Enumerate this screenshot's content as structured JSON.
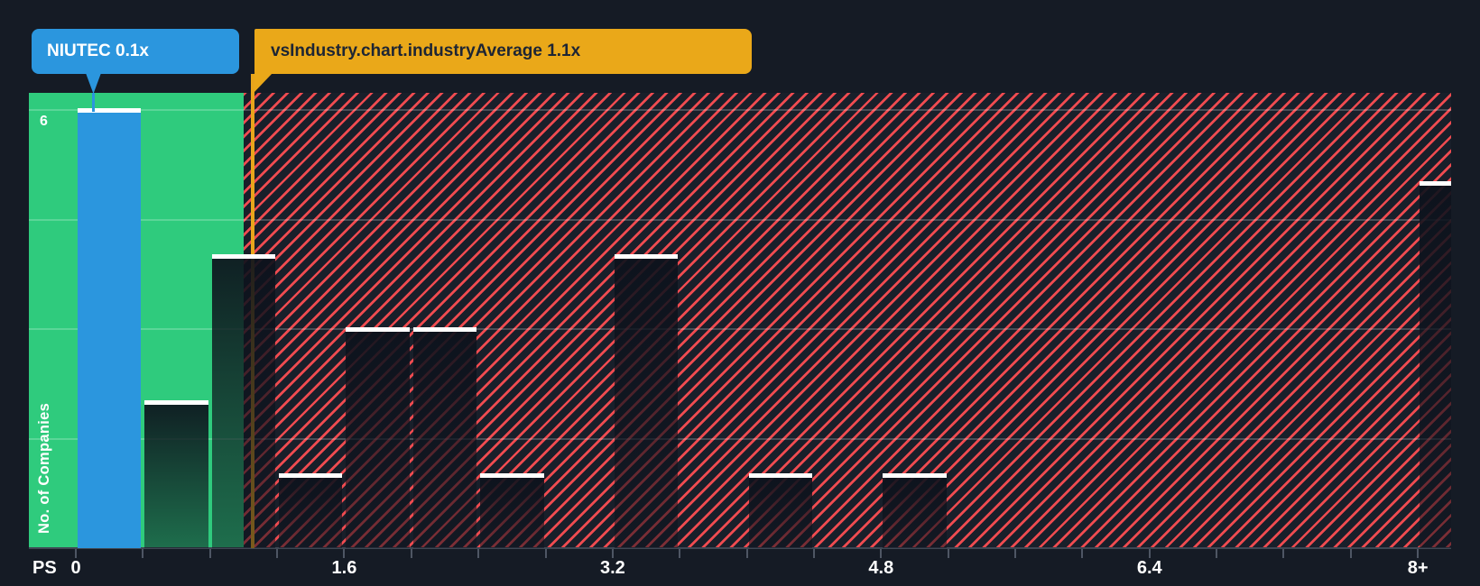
{
  "tooltips": {
    "company_label": "NIUTEC 0.1x",
    "industry_label": "vsIndustry.chart.industryAverage 1.1x"
  },
  "chart_data": {
    "type": "bar",
    "subtype": "histogram",
    "title": "",
    "xlabel": "PS",
    "ylabel": "No. of Companies",
    "y_top_label": "6",
    "xlim": [
      0,
      8.2
    ],
    "ylim": [
      0,
      6.25
    ],
    "grid": true,
    "y_gridlines": [
      1.5,
      3,
      4.5,
      6
    ],
    "bucket_size": 0.4,
    "x_ticks": [
      {
        "value": 0,
        "label": "0"
      },
      {
        "value": 1.6,
        "label": "1.6"
      },
      {
        "value": 3.2,
        "label": "3.2"
      },
      {
        "value": 4.8,
        "label": "4.8"
      },
      {
        "value": 6.4,
        "label": "6.4"
      },
      {
        "value": 8,
        "label": "8+"
      }
    ],
    "axis_tick_step": 0.4,
    "bars": [
      {
        "from": 0.0,
        "to": 0.4,
        "count": 6,
        "kind": "company"
      },
      {
        "from": 0.4,
        "to": 0.8,
        "count": 2,
        "kind": "normal"
      },
      {
        "from": 0.8,
        "to": 1.2,
        "count": 4,
        "kind": "normal"
      },
      {
        "from": 1.2,
        "to": 1.6,
        "count": 1,
        "kind": "normal"
      },
      {
        "from": 1.6,
        "to": 2.0,
        "count": 3,
        "kind": "normal"
      },
      {
        "from": 2.0,
        "to": 2.4,
        "count": 3,
        "kind": "normal"
      },
      {
        "from": 2.4,
        "to": 2.8,
        "count": 1,
        "kind": "normal"
      },
      {
        "from": 3.2,
        "to": 3.6,
        "count": 4,
        "kind": "normal"
      },
      {
        "from": 4.0,
        "to": 4.4,
        "count": 1,
        "kind": "normal"
      },
      {
        "from": 4.8,
        "to": 5.2,
        "count": 1,
        "kind": "normal"
      },
      {
        "from": 8.0,
        "to": 8.4,
        "count": 5,
        "kind": "normal",
        "clipped": true
      }
    ],
    "company": {
      "name": "NIUTEC",
      "value": 0.1
    },
    "industry_average": {
      "value": 1.1
    },
    "legend": "none"
  },
  "colors": {
    "background": "#151b25",
    "company_blue": "#2b96de",
    "industry_yellow": "#eaa819",
    "below_average_green": "#2fcb7d",
    "above_average_hatch_red": "#ef4b50",
    "bar_cap_white": "#ffffff"
  }
}
